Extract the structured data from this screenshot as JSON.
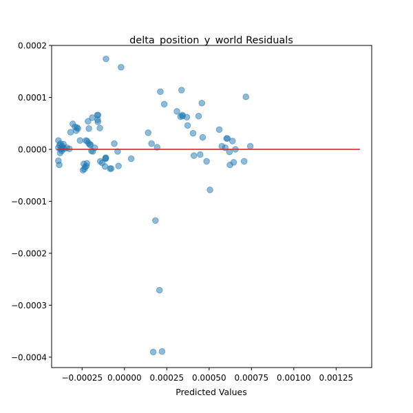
{
  "chart_data": {
    "type": "scatter",
    "title": "delta_position_y_world Residuals",
    "xlabel": "Predicted Values",
    "ylabel": "",
    "xlim": [
      -0.00043,
      0.00146
    ],
    "ylim": [
      -0.00042,
      0.0002
    ],
    "x_ticks": [
      -0.00025,
      0.0,
      0.00025,
      0.0005,
      0.00075,
      0.001,
      0.00125
    ],
    "x_tick_labels": [
      "−0.00025",
      "0.00000",
      "0.00025",
      "0.00050",
      "0.00075",
      "0.00100",
      "0.00125"
    ],
    "y_ticks": [
      0.0002,
      0.0001,
      0.0,
      -0.0001,
      -0.0002,
      -0.0003,
      -0.0004
    ],
    "y_tick_labels": [
      "0.0002",
      "0.0001",
      "0.0000",
      "−0.0001",
      "−0.0002",
      "−0.0003",
      "−0.0004"
    ],
    "grid": false,
    "point_color": "#1f77b4",
    "line_color": "#d62728",
    "zero_line": {
      "x": [
        -0.0004,
        0.00139
      ],
      "y": [
        0.0,
        0.0
      ]
    },
    "points": [
      [
        -0.00039,
        1.7e-05
      ],
      [
        -0.00039,
        3e-06
      ],
      [
        -0.00039,
        -2.2e-05
      ],
      [
        -0.000385,
        -3e-05
      ],
      [
        -0.000383,
        8e-06
      ],
      [
        -0.00038,
        -7e-06
      ],
      [
        -0.000378,
        1.1e-05
      ],
      [
        -0.000375,
        0.0
      ],
      [
        -0.000372,
        4e-06
      ],
      [
        -0.00037,
        -3e-06
      ],
      [
        -0.000367,
        6e-06
      ],
      [
        -0.000365,
        2e-06
      ],
      [
        -0.00036,
        1e-05
      ],
      [
        -0.000355,
        1e-06
      ],
      [
        -0.00034,
        3e-06
      ],
      [
        -0.000325,
        1e-06
      ],
      [
        -0.000318,
        3.3e-05
      ],
      [
        -0.000305,
        4.9e-05
      ],
      [
        -0.000292,
        4.3e-05
      ],
      [
        -0.000285,
        3.6e-05
      ],
      [
        -0.00028,
        4.2e-05
      ],
      [
        -0.000275,
        4e-05
      ],
      [
        -0.000262,
        1.7e-05
      ],
      [
        -0.000245,
        -4e-05
      ],
      [
        -0.00024,
        -2.8e-05
      ],
      [
        -0.000237,
        -3.8e-05
      ],
      [
        -0.000232,
        -3.4e-05
      ],
      [
        -0.000228,
        1.7e-05
      ],
      [
        -0.000225,
        -3.2e-05
      ],
      [
        -0.000222,
        -2.7e-05
      ],
      [
        -0.00022,
        1.6e-05
      ],
      [
        -0.000215,
        5.4e-05
      ],
      [
        -0.000212,
        1.2e-05
      ],
      [
        -0.00021,
        4e-05
      ],
      [
        -0.000205,
        9e-06
      ],
      [
        -0.0002,
        9e-06
      ],
      [
        -0.000195,
        -3e-06
      ],
      [
        -0.00019,
        6.1e-05
      ],
      [
        -0.000187,
        -4e-06
      ],
      [
        -0.000175,
        3e-06
      ],
      [
        -0.00016,
        6.6e-05
      ],
      [
        -0.000158,
        5.7e-05
      ],
      [
        -0.000157,
        5.3e-05
      ],
      [
        -0.000156,
        6.6e-05
      ],
      [
        -0.000145,
        4.1e-05
      ],
      [
        -0.000143,
        -2.3e-05
      ],
      [
        -0.000132,
        -2.6e-05
      ],
      [
        -0.000115,
        -3.3e-05
      ],
      [
        -0.000112,
        -1.7e-05
      ],
      [
        -0.000111,
        -1.8e-05
      ],
      [
        -0.00011,
        -1.6e-05
      ],
      [
        -0.000109,
        0.000174
      ],
      [
        -8.5e-05,
        -3.7e-05
      ],
      [
        -7.8e-05,
        -3.7e-05
      ],
      [
        -6e-05,
        1.1e-05
      ],
      [
        -4e-05,
        -4e-06
      ],
      [
        -3.5e-05,
        -3.2e-05
      ],
      [
        -2e-05,
        0.000158
      ],
      [
        4e-05,
        -1.8e-05
      ],
      [
        0.00014,
        3.2e-05
      ],
      [
        0.00016,
        1.1e-05
      ],
      [
        0.00017,
        -0.00039
      ],
      [
        0.000183,
        -0.000137
      ],
      [
        0.000193,
        4e-06
      ],
      [
        0.000207,
        -0.000271
      ],
      [
        0.000212,
        0.000111
      ],
      [
        0.000222,
        -0.000389
      ],
      [
        0.000235,
        8.7e-05
      ],
      [
        0.00031,
        7.3e-05
      ],
      [
        0.000331,
        6.3e-05
      ],
      [
        0.000337,
        0.000114
      ],
      [
        0.000342,
        6.6e-05
      ],
      [
        0.000343,
        6.4e-05
      ],
      [
        0.000368,
        6.2e-05
      ],
      [
        0.000373,
        4.6e-05
      ],
      [
        0.000405,
        3.1e-05
      ],
      [
        0.00041,
        -1.2e-05
      ],
      [
        0.000438,
        6.4e-05
      ],
      [
        0.000447,
        -1e-05
      ],
      [
        0.000457,
        8.9e-05
      ],
      [
        0.000462,
        2.3e-05
      ],
      [
        0.000485,
        -2.3e-05
      ],
      [
        0.000505,
        -7.8e-05
      ],
      [
        0.00056,
        3.8e-05
      ],
      [
        0.000575,
        6e-06
      ],
      [
        0.000595,
        3e-06
      ],
      [
        0.000603,
        2.1e-05
      ],
      [
        0.000608,
        2.1e-05
      ],
      [
        0.00062,
        -5e-06
      ],
      [
        0.000623,
        -3e-05
      ],
      [
        0.000638,
        1.6e-05
      ],
      [
        0.000645,
        -2.5e-05
      ],
      [
        0.000655,
        0.0
      ],
      [
        0.000707,
        -2.3e-05
      ],
      [
        0.000717,
        0.000101
      ],
      [
        0.000743,
        6e-06
      ]
    ],
    "x_offset_note_hidden": null
  }
}
